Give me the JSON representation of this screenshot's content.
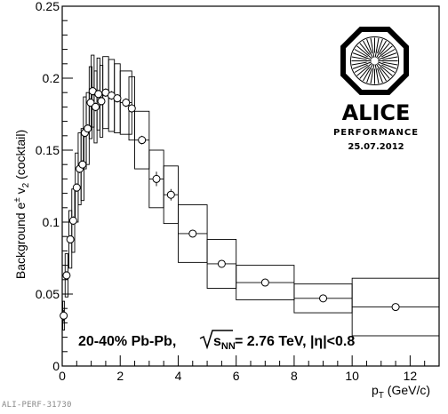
{
  "chart_data": {
    "type": "scatter",
    "xlabel_main": "p",
    "xlabel_sub": "T",
    "xlabel_unit": " (GeV/c)",
    "ylabel_prefix": "Background e",
    "ylabel_sup": "±",
    "ylabel_mid": " v",
    "ylabel_sub": "2",
    "ylabel_suffix": " (cocktail)",
    "xlim": [
      0,
      13
    ],
    "ylim": [
      0,
      0.25
    ],
    "xticks": [
      0,
      2,
      4,
      6,
      8,
      10,
      12
    ],
    "xtick_labels": [
      "0",
      "2",
      "4",
      "6",
      "8",
      "10",
      "12"
    ],
    "yticks": [
      0,
      0.05,
      0.1,
      0.15,
      0.2,
      0.25
    ],
    "ytick_labels": [
      "0",
      "0.05",
      "0.1",
      "0.15",
      "0.2",
      "0.25"
    ],
    "annotation": {
      "prefix": "20-40% Pb-Pb, ",
      "sqrt_sub": "NN",
      "sqrt_s": "s",
      "suffix": " = 2.76 TeV, |η|<0.8"
    },
    "points": [
      {
        "x": 0.05,
        "y": 0.035,
        "xerr": 0.03,
        "yerr": 0.004,
        "sys": 0.01
      },
      {
        "x": 0.15,
        "y": 0.063,
        "xerr": 0.05,
        "yerr": 0.003,
        "sys": 0.015
      },
      {
        "x": 0.28,
        "y": 0.088,
        "xerr": 0.05,
        "yerr": 0.003,
        "sys": 0.02
      },
      {
        "x": 0.38,
        "y": 0.101,
        "xerr": 0.05,
        "yerr": 0.003,
        "sys": 0.022
      },
      {
        "x": 0.5,
        "y": 0.124,
        "xerr": 0.05,
        "yerr": 0.003,
        "sys": 0.024
      },
      {
        "x": 0.6,
        "y": 0.137,
        "xerr": 0.05,
        "yerr": 0.003,
        "sys": 0.025
      },
      {
        "x": 0.7,
        "y": 0.14,
        "xerr": 0.05,
        "yerr": 0.003,
        "sys": 0.025
      },
      {
        "x": 0.78,
        "y": 0.162,
        "xerr": 0.05,
        "yerr": 0.003,
        "sys": 0.025
      },
      {
        "x": 0.88,
        "y": 0.165,
        "xerr": 0.05,
        "yerr": 0.003,
        "sys": 0.025
      },
      {
        "x": 0.98,
        "y": 0.183,
        "xerr": 0.05,
        "yerr": 0.003,
        "sys": 0.025
      },
      {
        "x": 1.05,
        "y": 0.191,
        "xerr": 0.05,
        "yerr": 0.003,
        "sys": 0.025
      },
      {
        "x": 1.15,
        "y": 0.18,
        "xerr": 0.05,
        "yerr": 0.003,
        "sys": 0.025
      },
      {
        "x": 1.25,
        "y": 0.189,
        "xerr": 0.05,
        "yerr": 0.003,
        "sys": 0.025
      },
      {
        "x": 1.35,
        "y": 0.184,
        "xerr": 0.05,
        "yerr": 0.003,
        "sys": 0.025
      },
      {
        "x": 1.5,
        "y": 0.19,
        "xerr": 0.1,
        "yerr": 0.003,
        "sys": 0.025
      },
      {
        "x": 1.7,
        "y": 0.188,
        "xerr": 0.1,
        "yerr": 0.003,
        "sys": 0.025
      },
      {
        "x": 1.9,
        "y": 0.186,
        "xerr": 0.1,
        "yerr": 0.003,
        "sys": 0.024
      },
      {
        "x": 2.2,
        "y": 0.183,
        "xerr": 0.2,
        "yerr": 0.003,
        "sys": 0.022
      },
      {
        "x": 2.4,
        "y": 0.179,
        "xerr": 0.1,
        "yerr": 0.003,
        "sys": 0.022
      },
      {
        "x": 2.75,
        "y": 0.157,
        "xerr": 0.25,
        "yerr": 0.003,
        "sys": 0.02
      },
      {
        "x": 3.25,
        "y": 0.13,
        "xerr": 0.25,
        "yerr": 0.005,
        "sys": 0.02
      },
      {
        "x": 3.75,
        "y": 0.119,
        "xerr": 0.25,
        "yerr": 0.004,
        "sys": 0.02
      },
      {
        "x": 4.5,
        "y": 0.092,
        "xerr": 0.5,
        "yerr": 0.002,
        "sys": 0.02
      },
      {
        "x": 5.5,
        "y": 0.071,
        "xerr": 0.5,
        "yerr": 0.002,
        "sys": 0.017
      },
      {
        "x": 7.0,
        "y": 0.058,
        "xerr": 1.0,
        "yerr": 0.002,
        "sys": 0.012
      },
      {
        "x": 9.0,
        "y": 0.047,
        "xerr": 1.0,
        "yerr": 0.002,
        "sys": 0.01
      },
      {
        "x": 11.5,
        "y": 0.041,
        "xerr": 1.5,
        "yerr": 0.002,
        "sys": 0.02
      }
    ]
  },
  "logo": {
    "name": "ALICE",
    "subtitle": "PERFORMANCE",
    "date": "25.07.2012"
  },
  "footer": "ALI-PERF-31730"
}
